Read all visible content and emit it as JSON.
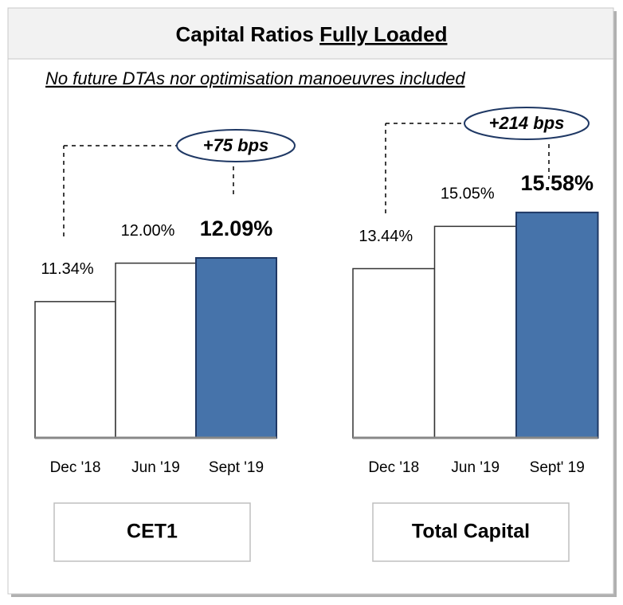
{
  "header": {
    "title": "Capital Ratios",
    "title_emphasis": "Fully Loaded",
    "subtitle": "No future DTAs nor optimisation manoeuvres  included"
  },
  "chart_data": [
    {
      "type": "bar",
      "label": "CET1",
      "categories": [
        "Dec '18",
        "Jun '19",
        "Sept '19"
      ],
      "values": [
        11.34,
        12.0,
        12.09
      ],
      "value_labels": [
        "11.34%",
        "12.00%",
        "12.09%"
      ],
      "colors": [
        "#ffffff",
        "#ffffff",
        "#4673aa"
      ],
      "ylim": [
        9,
        12.5
      ],
      "annotation": "+75 bps"
    },
    {
      "type": "bar",
      "label": "Total Capital",
      "categories": [
        "Dec '18",
        "Jun '19",
        "Sept' 19"
      ],
      "values": [
        13.44,
        15.05,
        15.58
      ],
      "value_labels": [
        "13.44%",
        "15.05%",
        "15.58%"
      ],
      "colors": [
        "#ffffff",
        "#ffffff",
        "#4673aa"
      ],
      "ylim": [
        7,
        16
      ],
      "annotation": "+214 bps"
    }
  ]
}
